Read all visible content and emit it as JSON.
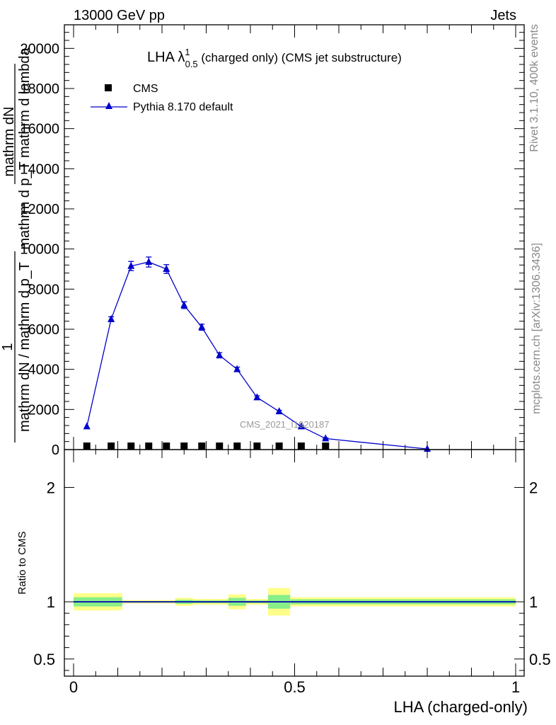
{
  "header": {
    "left": "13000 GeV pp",
    "right": "Jets"
  },
  "side_labels": {
    "top": "Rivet 3.1.10,  400k events",
    "bottom": "mcplots.cern.ch [arXiv:1306.3436]"
  },
  "chart_data": [
    {
      "type": "scatter",
      "title_main": "LHA λ",
      "title_sup": "1",
      "title_sub": "0.5",
      "title_rest": " (charged only) (CMS jet substructure)",
      "ylabel_top": "mathrm dN",
      "ylabel_top_denominator": "mathrm d p_T mathrm d lambda",
      "ylabel_main": "1",
      "ylabel_main_denominator": "mathrm dN / mathrm d p_T",
      "watermark": "CMS_2021_I1920187",
      "xlim": [
        0,
        1
      ],
      "ylim": [
        0,
        21000
      ],
      "yticks": [
        0,
        2000,
        4000,
        6000,
        8000,
        10000,
        12000,
        14000,
        16000,
        18000,
        20000
      ],
      "legend_position": "top-left",
      "series": [
        {
          "name": "CMS",
          "marker": "square",
          "color": "#000000",
          "x": [
            0.03,
            0.085,
            0.13,
            0.17,
            0.21,
            0.25,
            0.29,
            0.33,
            0.37,
            0.415,
            0.465,
            0.515,
            0.57
          ],
          "y": [
            0,
            0,
            0,
            0,
            0,
            0,
            0,
            0,
            0,
            0,
            0,
            0,
            0
          ]
        },
        {
          "name": "Pythia 8.170 default",
          "marker": "triangle",
          "color": "#0000cc",
          "x": [
            0.03,
            0.085,
            0.13,
            0.17,
            0.21,
            0.25,
            0.29,
            0.33,
            0.37,
            0.415,
            0.465,
            0.515,
            0.57,
            0.8
          ],
          "y": [
            1150,
            6500,
            9150,
            9350,
            9000,
            7200,
            6100,
            4700,
            4000,
            2600,
            1900,
            1150,
            550,
            30
          ],
          "err": [
            0,
            120,
            230,
            250,
            220,
            170,
            150,
            130,
            110,
            80,
            60,
            50,
            30,
            0
          ]
        }
      ]
    },
    {
      "type": "scatter",
      "ylabel": "Ratio to CMS",
      "xlabel": "LHA (charged-only)",
      "xlim": [
        0,
        1
      ],
      "ylim": [
        0.35,
        2.3
      ],
      "xtick_labels": [
        "0",
        "0.5",
        "1"
      ],
      "xtick_values": [
        0,
        0.5,
        1
      ],
      "ytick_labels": [
        "0.5",
        "1",
        "2"
      ],
      "ytick_values": [
        0.5,
        1,
        2
      ],
      "reference_line": 1,
      "bands": {
        "colors": {
          "inner": "#88ee88",
          "outer": "#ffff88"
        },
        "x_edges": [
          0,
          0.11,
          0.15,
          0.23,
          0.27,
          0.31,
          0.35,
          0.39,
          0.44,
          0.49,
          0.54,
          1.0
        ],
        "outer_lo": [
          0.925,
          0.985,
          0.985,
          0.965,
          0.975,
          0.975,
          0.935,
          0.975,
          0.88,
          0.96,
          0.96
        ],
        "outer_hi": [
          1.075,
          1.015,
          1.015,
          1.035,
          1.025,
          1.025,
          1.065,
          1.025,
          1.12,
          1.04,
          1.04
        ],
        "inner_lo": [
          0.96,
          0.993,
          0.993,
          0.982,
          0.988,
          0.988,
          0.965,
          0.988,
          0.94,
          0.978,
          0.978
        ],
        "inner_hi": [
          1.04,
          1.007,
          1.007,
          1.018,
          1.012,
          1.012,
          1.035,
          1.012,
          1.06,
          1.022,
          1.022
        ]
      },
      "series": [
        {
          "name": "Pythia 8.170 default",
          "color": "#0000cc",
          "x": [
            0,
            1
          ],
          "y": [
            1,
            1
          ]
        }
      ]
    }
  ]
}
